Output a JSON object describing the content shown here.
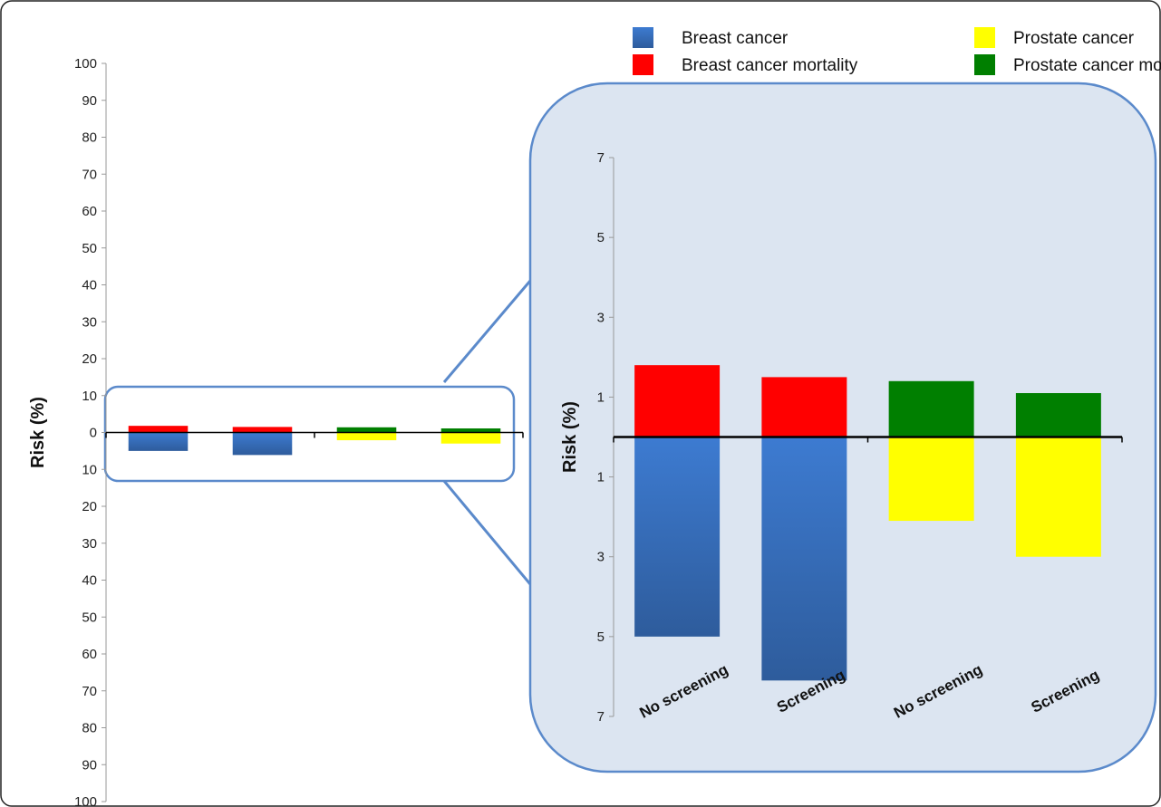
{
  "chart_data": [
    {
      "type": "bar",
      "stacked_diverging": true,
      "ylabel": "Risk (%)",
      "ylim": [
        -100,
        100
      ],
      "yticks": [
        100,
        90,
        80,
        70,
        60,
        50,
        40,
        30,
        20,
        10,
        0,
        -10,
        -20,
        -30,
        -40,
        -50,
        -60,
        -70,
        -80,
        -90,
        -100
      ],
      "ytick_labels": [
        "100",
        "90",
        "80",
        "70",
        "60",
        "50",
        "40",
        "30",
        "20",
        "10",
        "0",
        "10",
        "20",
        "30",
        "40",
        "50",
        "60",
        "70",
        "80",
        "90",
        "100"
      ],
      "series": [
        {
          "name": "Breast cancer mortality",
          "values": [
            1.8,
            1.5,
            null,
            null
          ]
        },
        {
          "name": "Prostate cancer mortality",
          "values": [
            null,
            null,
            1.4,
            1.1
          ]
        },
        {
          "name": "Breast cancer",
          "values": [
            -5.0,
            -6.1,
            null,
            null
          ]
        },
        {
          "name": "Prostate cancer",
          "values": [
            null,
            null,
            -2.1,
            -3.0
          ]
        }
      ]
    },
    {
      "type": "bar",
      "stacked_diverging": true,
      "ylabel": "Risk (%)",
      "ylim": [
        -7,
        7
      ],
      "yticks": [
        7,
        5,
        3,
        1,
        -1,
        -3,
        -5,
        -7
      ],
      "ytick_labels": [
        "7",
        "5",
        "3",
        "1",
        "1",
        "3",
        "5",
        "7"
      ],
      "categories": [
        "No screening",
        "Screening",
        "No screening",
        "Screening"
      ],
      "series": [
        {
          "name": "Breast cancer mortality",
          "values": [
            1.8,
            1.5,
            null,
            null
          ]
        },
        {
          "name": "Prostate cancer mortality",
          "values": [
            null,
            null,
            1.4,
            1.1
          ]
        },
        {
          "name": "Breast cancer",
          "values": [
            -5.0,
            -6.1,
            null,
            null
          ]
        },
        {
          "name": "Prostate cancer",
          "values": [
            null,
            null,
            -2.1,
            -3.0
          ]
        }
      ]
    }
  ],
  "legend": {
    "placement": "top-right",
    "items": [
      {
        "label": "Breast cancer",
        "color": "#3B6DB8"
      },
      {
        "label": "Prostate cancer",
        "color": "#FFFF00"
      },
      {
        "label": "Breast cancer mortality",
        "color": "#FF0000"
      },
      {
        "label": "Prostate cancer mortality",
        "color": "#007F00"
      }
    ]
  },
  "colors": {
    "breast": "#3B6DB8",
    "prostate": "#FFFF00",
    "breast_mortality": "#FF0000",
    "prostate_mortality": "#007F00",
    "callout_fill": "#DCE5F1",
    "callout_stroke": "#5B8ACB"
  }
}
